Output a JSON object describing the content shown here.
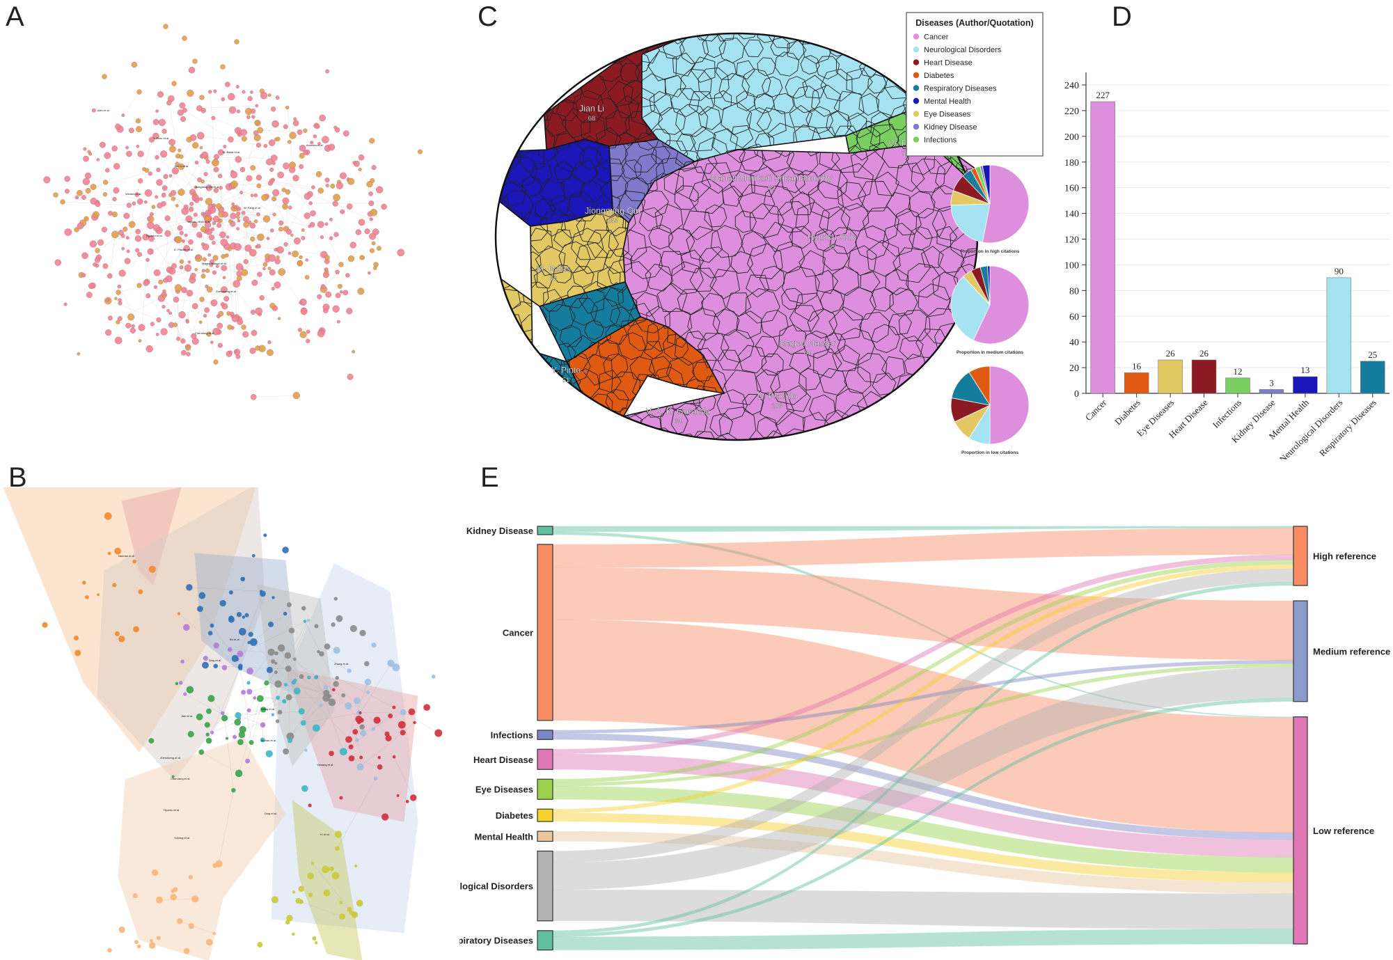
{
  "panels": {
    "a": "A",
    "b": "B",
    "c": "C",
    "d": "D",
    "e": "E"
  },
  "colors": {
    "Cancer": "#dd8fdd",
    "Neurological Disorders": "#a6e3f2",
    "Heart Disease": "#8b1a22",
    "Diabetes": "#e05a12",
    "Respiratory Diseases": "#147d9e",
    "Mental Health": "#1b16b8",
    "Eye Diseases": "#e3c964",
    "Kidney Disease": "#7f7acc",
    "Infections": "#79cf62"
  },
  "network_a": {
    "labels": [
      "Jian Li et al.",
      "Jiongming Qin et al.",
      "Hyunku Shin et al.",
      "D. Placido et al.",
      "Maged Nasser et al.",
      "Y. Pinto et al.",
      "M. Balas et al.",
      "W. Fang et al.",
      "Zhenzheng et al.",
      "Chendong et al.",
      "Wenbin et al.",
      "Anumita et al.",
      "Nguyen et al.",
      "Alex et al."
    ]
  },
  "network_b": {
    "labels": [
      "Nannan et al.",
      "Bo et al.",
      "Ding et al.",
      "Wang et al.",
      "Jian et al.",
      "Zhenzheng et al.",
      "Chun-fang et al.",
      "Hyunku et al.",
      "Yuming et al.",
      "Ding et al.",
      "Muhao et al.",
      "Yamang et al.",
      "H. et al.",
      "Zhang et al."
    ]
  },
  "voronoi": {
    "legend_title": "Diseases (Author/Quotation)",
    "legend": [
      "Cancer",
      "Neurological Disorders",
      "Heart Disease",
      "Diabetes",
      "Respiratory Diseases",
      "Mental Health",
      "Eye Diseases",
      "Kidney Disease",
      "Infections"
    ],
    "authors": [
      {
        "name": "Jian Li",
        "value": "68"
      },
      {
        "name": "W. Fang",
        "value": "74"
      },
      {
        "name": "Mahati Munikoti Srikantamurthy",
        "value": "62"
      },
      {
        "name": "Jiongming Qin",
        "value": "155"
      },
      {
        "name": "Hyunku Shin",
        "value": "93"
      },
      {
        "name": "M. Balas",
        "value": "66"
      },
      {
        "name": "Maged Nasser",
        "value": "64"
      },
      {
        "name": "Y. Pinto",
        "value": "51"
      },
      {
        "name": "D. Placido",
        "value": "106"
      },
      {
        "name": "V. A. K. Gorantla",
        "value": "64"
      }
    ],
    "pie_captions": [
      "Proportion in high citations",
      "Proportion in medium citations",
      "Proportion in low citations"
    ]
  },
  "chart_data": [
    {
      "type": "bar",
      "categories": [
        "Cancer",
        "Diabetes",
        "Eye Diseases",
        "Heart Disease",
        "Infections",
        "Kidney Disease",
        "Mental Health",
        "Neurological Disorders",
        "Respiratory Diseases"
      ],
      "values": [
        227,
        16,
        26,
        26,
        12,
        3,
        13,
        90,
        25
      ],
      "ylim": [
        0,
        240
      ],
      "yticks": [
        0,
        20,
        40,
        60,
        80,
        100,
        120,
        140,
        160,
        180,
        200,
        220,
        240
      ],
      "grid": true
    },
    {
      "type": "pie",
      "caption": "Proportion in high citations",
      "slices": [
        {
          "category": "Cancer",
          "value": 52
        },
        {
          "category": "Neurological Disorders",
          "value": 21
        },
        {
          "category": "Eye Diseases",
          "value": 6
        },
        {
          "category": "Heart Disease",
          "value": 7
        },
        {
          "category": "Respiratory Diseases",
          "value": 4
        },
        {
          "category": "Diabetes",
          "value": 2
        },
        {
          "category": "Infections",
          "value": 2
        },
        {
          "category": "Kidney Disease",
          "value": 1
        },
        {
          "category": "Mental Health",
          "value": 3
        }
      ]
    },
    {
      "type": "pie",
      "caption": "Proportion in medium citations",
      "slices": [
        {
          "category": "Cancer",
          "value": 57
        },
        {
          "category": "Neurological Disorders",
          "value": 31
        },
        {
          "category": "Eye Diseases",
          "value": 4
        },
        {
          "category": "Heart Disease",
          "value": 4
        },
        {
          "category": "Respiratory Diseases",
          "value": 3
        },
        {
          "category": "Mental Health",
          "value": 1
        }
      ]
    },
    {
      "type": "pie",
      "caption": "Proportion in low citations",
      "slices": [
        {
          "category": "Cancer",
          "value": 50
        },
        {
          "category": "Neurological Disorders",
          "value": 9
        },
        {
          "category": "Eye Diseases",
          "value": 9
        },
        {
          "category": "Heart Disease",
          "value": 10
        },
        {
          "category": "Respiratory Diseases",
          "value": 13
        },
        {
          "category": "Diabetes",
          "value": 9
        }
      ]
    },
    {
      "type": "sankey",
      "sources": [
        "Kidney Disease",
        "Cancer",
        "Infections",
        "Heart Disease",
        "Eye Diseases",
        "Diabetes",
        "Mental Health",
        "Neurological Disorders",
        "Respiratory Diseases"
      ],
      "targets": [
        "High reference",
        "Medium reference",
        "Low reference"
      ],
      "source_colors": {
        "Kidney Disease": "#5fbf9f",
        "Cancer": "#f98c63",
        "Infections": "#7e87c4",
        "Heart Disease": "#e077b5",
        "Eye Diseases": "#9ad14c",
        "Diabetes": "#f7d02d",
        "Mental Health": "#e8c79c",
        "Neurological Disorders": "#b3b3b3",
        "Respiratory Diseases": "#5fbf9f"
      },
      "target_colors": {
        "High reference": "#f98c63",
        "Medium reference": "#8b9ccc",
        "Low reference": "#e077b5"
      },
      "links": [
        {
          "source": "Kidney Disease",
          "target": "High reference",
          "value": 2
        },
        {
          "source": "Kidney Disease",
          "target": "Low reference",
          "value": 1
        },
        {
          "source": "Cancer",
          "target": "High reference",
          "value": 30
        },
        {
          "source": "Cancer",
          "target": "Medium reference",
          "value": 67
        },
        {
          "source": "Cancer",
          "target": "Low reference",
          "value": 130
        },
        {
          "source": "Infections",
          "target": "Medium reference",
          "value": 4
        },
        {
          "source": "Infections",
          "target": "Low reference",
          "value": 8
        },
        {
          "source": "Heart Disease",
          "target": "High reference",
          "value": 6
        },
        {
          "source": "Heart Disease",
          "target": "Low reference",
          "value": 20
        },
        {
          "source": "Eye Diseases",
          "target": "High reference",
          "value": 5
        },
        {
          "source": "Eye Diseases",
          "target": "Medium reference",
          "value": 4
        },
        {
          "source": "Eye Diseases",
          "target": "Low reference",
          "value": 17
        },
        {
          "source": "Diabetes",
          "target": "High reference",
          "value": 5
        },
        {
          "source": "Diabetes",
          "target": "Low reference",
          "value": 11
        },
        {
          "source": "Mental Health",
          "target": "Low reference",
          "value": 13
        },
        {
          "source": "Neurological Disorders",
          "target": "High reference",
          "value": 15
        },
        {
          "source": "Neurological Disorders",
          "target": "Medium reference",
          "value": 35
        },
        {
          "source": "Neurological Disorders",
          "target": "Low reference",
          "value": 40
        },
        {
          "source": "Respiratory Diseases",
          "target": "High reference",
          "value": 4
        },
        {
          "source": "Respiratory Diseases",
          "target": "Medium reference",
          "value": 4
        },
        {
          "source": "Respiratory Diseases",
          "target": "Low reference",
          "value": 17
        }
      ]
    }
  ]
}
